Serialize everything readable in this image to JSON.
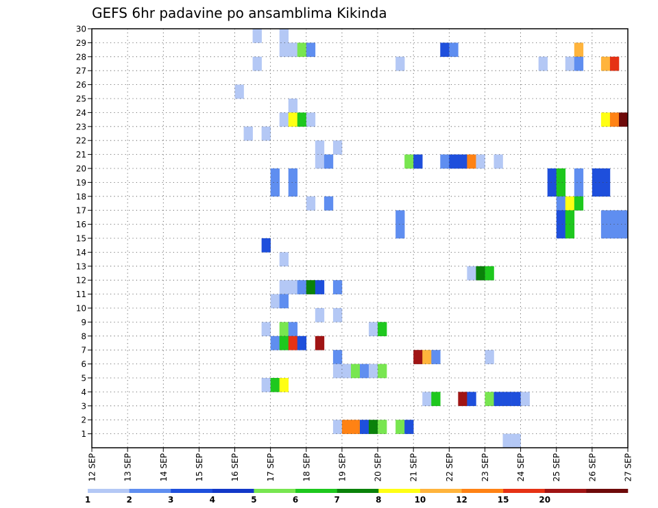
{
  "chart_data": {
    "type": "heatmap",
    "title": "GEFS 6hr padavine po ansamblima Kikinda",
    "xlabel": "",
    "ylabel": "",
    "x_start": "2018-09-12 00Z",
    "x_tick_labels": [
      "12 SEP",
      "13 SEP",
      "14 SEP",
      "15 SEP",
      "16 SEP",
      "17 SEP",
      "18 SEP",
      "19 SEP",
      "20 SEP",
      "21 SEP",
      "22 SEP",
      "23 SEP",
      "24 SEP",
      "25 SEP",
      "26 SEP",
      "27 SEP"
    ],
    "y_tick_labels": [
      "1",
      "2",
      "3",
      "4",
      "5",
      "6",
      "7",
      "8",
      "9",
      "10",
      "11",
      "12",
      "13",
      "14",
      "15",
      "16",
      "17",
      "18",
      "19",
      "20",
      "21",
      "22",
      "23",
      "24",
      "25",
      "26",
      "27",
      "28",
      "29",
      "30"
    ],
    "ylim": [
      0,
      30
    ],
    "grid": true,
    "colorbar": {
      "bins": [
        1,
        2,
        3,
        4,
        5,
        6,
        7,
        8,
        10,
        12,
        15,
        20
      ],
      "labels": [
        "1",
        "2",
        "3",
        "4",
        "5",
        "6",
        "7",
        "8",
        "10",
        "12",
        "15",
        "20"
      ],
      "colors": [
        "#b4c8f5",
        "#5f8ef0",
        "#1e4fdc",
        "#1238c8",
        "#78e650",
        "#1ec81e",
        "#0a820a",
        "#ffff14",
        "#ffb43c",
        "#ff8214",
        "#e63214",
        "#a01414",
        "#6e0a0a"
      ]
    },
    "units_note": "each cell = one 6-hour step (t index from 12 SEP 00Z) for one ensemble member; value = colour class index",
    "cells": [
      {
        "m": 30,
        "t": 18,
        "c": 0
      },
      {
        "m": 30,
        "t": 21,
        "c": 0
      },
      {
        "m": 29,
        "t": 21,
        "c": 0
      },
      {
        "m": 29,
        "t": 22,
        "c": 0
      },
      {
        "m": 29,
        "t": 23,
        "c": 4
      },
      {
        "m": 29,
        "t": 24,
        "c": 1
      },
      {
        "m": 29,
        "t": 39,
        "c": 2
      },
      {
        "m": 29,
        "t": 40,
        "c": 1
      },
      {
        "m": 29,
        "t": 54,
        "c": 8
      },
      {
        "m": 28,
        "t": 18,
        "c": 0
      },
      {
        "m": 28,
        "t": 34,
        "c": 0
      },
      {
        "m": 28,
        "t": 50,
        "c": 0
      },
      {
        "m": 28,
        "t": 53,
        "c": 0
      },
      {
        "m": 28,
        "t": 54,
        "c": 1
      },
      {
        "m": 28,
        "t": 57,
        "c": 8
      },
      {
        "m": 28,
        "t": 58,
        "c": 10
      },
      {
        "m": 26,
        "t": 16,
        "c": 0
      },
      {
        "m": 25,
        "t": 22,
        "c": 0
      },
      {
        "m": 24,
        "t": 21,
        "c": 0
      },
      {
        "m": 24,
        "t": 22,
        "c": 7
      },
      {
        "m": 24,
        "t": 23,
        "c": 5
      },
      {
        "m": 24,
        "t": 24,
        "c": 0
      },
      {
        "m": 24,
        "t": 57,
        "c": 7
      },
      {
        "m": 24,
        "t": 58,
        "c": 9
      },
      {
        "m": 24,
        "t": 59,
        "c": 12
      },
      {
        "m": 23,
        "t": 17,
        "c": 0
      },
      {
        "m": 23,
        "t": 19,
        "c": 0
      },
      {
        "m": 22,
        "t": 25,
        "c": 0
      },
      {
        "m": 22,
        "t": 27,
        "c": 0
      },
      {
        "m": 21,
        "t": 25,
        "c": 0
      },
      {
        "m": 21,
        "t": 26,
        "c": 1
      },
      {
        "m": 21,
        "t": 35,
        "c": 4
      },
      {
        "m": 21,
        "t": 36,
        "c": 2
      },
      {
        "m": 21,
        "t": 39,
        "c": 1
      },
      {
        "m": 21,
        "t": 40,
        "c": 2
      },
      {
        "m": 21,
        "t": 41,
        "c": 2
      },
      {
        "m": 21,
        "t": 42,
        "c": 9
      },
      {
        "m": 21,
        "t": 43,
        "c": 0
      },
      {
        "m": 21,
        "t": 45,
        "c": 0
      },
      {
        "m": 20,
        "t": 20,
        "c": 1
      },
      {
        "m": 20,
        "t": 22,
        "c": 1
      },
      {
        "m": 20,
        "t": 51,
        "c": 2
      },
      {
        "m": 20,
        "t": 52,
        "c": 5
      },
      {
        "m": 20,
        "t": 54,
        "c": 1
      },
      {
        "m": 20,
        "t": 56,
        "c": 2
      },
      {
        "m": 20,
        "t": 57,
        "c": 2
      },
      {
        "m": 19,
        "t": 20,
        "c": 1
      },
      {
        "m": 19,
        "t": 22,
        "c": 1
      },
      {
        "m": 19,
        "t": 51,
        "c": 2
      },
      {
        "m": 19,
        "t": 52,
        "c": 5
      },
      {
        "m": 19,
        "t": 54,
        "c": 1
      },
      {
        "m": 19,
        "t": 56,
        "c": 2
      },
      {
        "m": 19,
        "t": 57,
        "c": 2
      },
      {
        "m": 18,
        "t": 24,
        "c": 0
      },
      {
        "m": 18,
        "t": 26,
        "c": 1
      },
      {
        "m": 18,
        "t": 52,
        "c": 1
      },
      {
        "m": 18,
        "t": 53,
        "c": 7
      },
      {
        "m": 18,
        "t": 54,
        "c": 5
      },
      {
        "m": 17,
        "t": 34,
        "c": 1
      },
      {
        "m": 17,
        "t": 52,
        "c": 2
      },
      {
        "m": 17,
        "t": 53,
        "c": 5
      },
      {
        "m": 17,
        "t": 57,
        "c": 1
      },
      {
        "m": 17,
        "t": 58,
        "c": 1
      },
      {
        "m": 17,
        "t": 59,
        "c": 1
      },
      {
        "m": 16,
        "t": 34,
        "c": 1
      },
      {
        "m": 16,
        "t": 52,
        "c": 2
      },
      {
        "m": 16,
        "t": 53,
        "c": 5
      },
      {
        "m": 16,
        "t": 57,
        "c": 1
      },
      {
        "m": 16,
        "t": 58,
        "c": 1
      },
      {
        "m": 16,
        "t": 59,
        "c": 1
      },
      {
        "m": 15,
        "t": 19,
        "c": 2
      },
      {
        "m": 14,
        "t": 21,
        "c": 0
      },
      {
        "m": 13,
        "t": 42,
        "c": 0
      },
      {
        "m": 13,
        "t": 43,
        "c": 6
      },
      {
        "m": 13,
        "t": 44,
        "c": 5
      },
      {
        "m": 12,
        "t": 21,
        "c": 0
      },
      {
        "m": 12,
        "t": 22,
        "c": 0
      },
      {
        "m": 12,
        "t": 23,
        "c": 1
      },
      {
        "m": 12,
        "t": 24,
        "c": 6
      },
      {
        "m": 12,
        "t": 25,
        "c": 2
      },
      {
        "m": 12,
        "t": 27,
        "c": 1
      },
      {
        "m": 11,
        "t": 20,
        "c": 0
      },
      {
        "m": 11,
        "t": 21,
        "c": 1
      },
      {
        "m": 10,
        "t": 25,
        "c": 0
      },
      {
        "m": 10,
        "t": 27,
        "c": 0
      },
      {
        "m": 9,
        "t": 19,
        "c": 0
      },
      {
        "m": 9,
        "t": 21,
        "c": 4
      },
      {
        "m": 9,
        "t": 22,
        "c": 1
      },
      {
        "m": 9,
        "t": 31,
        "c": 0
      },
      {
        "m": 9,
        "t": 32,
        "c": 5
      },
      {
        "m": 8,
        "t": 20,
        "c": 1
      },
      {
        "m": 8,
        "t": 21,
        "c": 5
      },
      {
        "m": 8,
        "t": 22,
        "c": 10
      },
      {
        "m": 8,
        "t": 23,
        "c": 2
      },
      {
        "m": 8,
        "t": 25,
        "c": 11
      },
      {
        "m": 7,
        "t": 27,
        "c": 1
      },
      {
        "m": 7,
        "t": 36,
        "c": 11
      },
      {
        "m": 7,
        "t": 37,
        "c": 8
      },
      {
        "m": 7,
        "t": 38,
        "c": 1
      },
      {
        "m": 7,
        "t": 44,
        "c": 0
      },
      {
        "m": 6,
        "t": 27,
        "c": 0
      },
      {
        "m": 6,
        "t": 28,
        "c": 0
      },
      {
        "m": 6,
        "t": 29,
        "c": 4
      },
      {
        "m": 6,
        "t": 30,
        "c": 1
      },
      {
        "m": 6,
        "t": 31,
        "c": 0
      },
      {
        "m": 6,
        "t": 32,
        "c": 4
      },
      {
        "m": 5,
        "t": 19,
        "c": 0
      },
      {
        "m": 5,
        "t": 20,
        "c": 5
      },
      {
        "m": 5,
        "t": 21,
        "c": 7
      },
      {
        "m": 4,
        "t": 37,
        "c": 0
      },
      {
        "m": 4,
        "t": 38,
        "c": 5
      },
      {
        "m": 4,
        "t": 41,
        "c": 11
      },
      {
        "m": 4,
        "t": 42,
        "c": 2
      },
      {
        "m": 4,
        "t": 44,
        "c": 4
      },
      {
        "m": 4,
        "t": 45,
        "c": 2
      },
      {
        "m": 4,
        "t": 46,
        "c": 2
      },
      {
        "m": 4,
        "t": 47,
        "c": 2
      },
      {
        "m": 4,
        "t": 48,
        "c": 0
      },
      {
        "m": 2,
        "t": 27,
        "c": 0
      },
      {
        "m": 2,
        "t": 28,
        "c": 9
      },
      {
        "m": 2,
        "t": 29,
        "c": 9
      },
      {
        "m": 2,
        "t": 30,
        "c": 2
      },
      {
        "m": 2,
        "t": 31,
        "c": 6
      },
      {
        "m": 2,
        "t": 32,
        "c": 4
      },
      {
        "m": 2,
        "t": 34,
        "c": 4
      },
      {
        "m": 2,
        "t": 35,
        "c": 2
      },
      {
        "m": 1,
        "t": 46,
        "c": 0
      },
      {
        "m": 1,
        "t": 47,
        "c": 0
      }
    ]
  }
}
